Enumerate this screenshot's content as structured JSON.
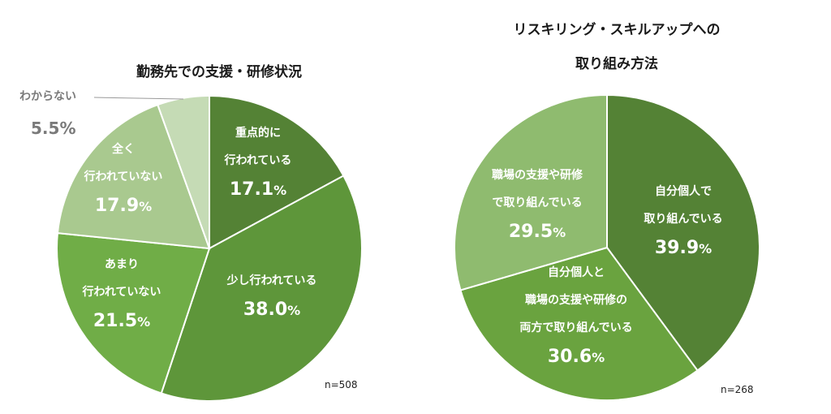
{
  "chart_data": [
    {
      "type": "pie",
      "title": "勤務先での支援・研修状況",
      "n_label": "n=508",
      "unit": "%",
      "slices": [
        {
          "lines": [
            "重点的に",
            "行われている"
          ],
          "value": 17.1,
          "value_label": "17.1",
          "color": "#548235"
        },
        {
          "lines": [
            "少し行われている"
          ],
          "value": 38.0,
          "value_label": "38.0",
          "color": "#5e963a"
        },
        {
          "lines": [
            "あまり",
            "行われていない"
          ],
          "value": 21.5,
          "value_label": "21.5",
          "color": "#70ad47"
        },
        {
          "lines": [
            "全く",
            "行われていない"
          ],
          "value": 17.9,
          "value_label": "17.9",
          "color": "#a9c98f"
        },
        {
          "lines": [
            "わからない"
          ],
          "value": 5.5,
          "value_label": "5.5",
          "color": "#c5dbb5"
        }
      ]
    },
    {
      "type": "pie",
      "title_lines": [
        "リスキリング・スキルアップへの",
        "取り組み方法"
      ],
      "n_label": "n=268",
      "unit": "%",
      "slices": [
        {
          "lines": [
            "自分個人で",
            "取り組んでいる"
          ],
          "value": 39.9,
          "value_label": "39.9",
          "color": "#548235"
        },
        {
          "lines": [
            "自分個人と",
            "職場の支援や研修の",
            "両方で取り組んでいる"
          ],
          "value": 30.6,
          "value_label": "30.6",
          "color": "#6aa33f"
        },
        {
          "lines": [
            "職場の支援や研修",
            "で取り組んでいる"
          ],
          "value": 29.5,
          "value_label": "29.5",
          "color": "#8fbb6f"
        }
      ]
    }
  ]
}
